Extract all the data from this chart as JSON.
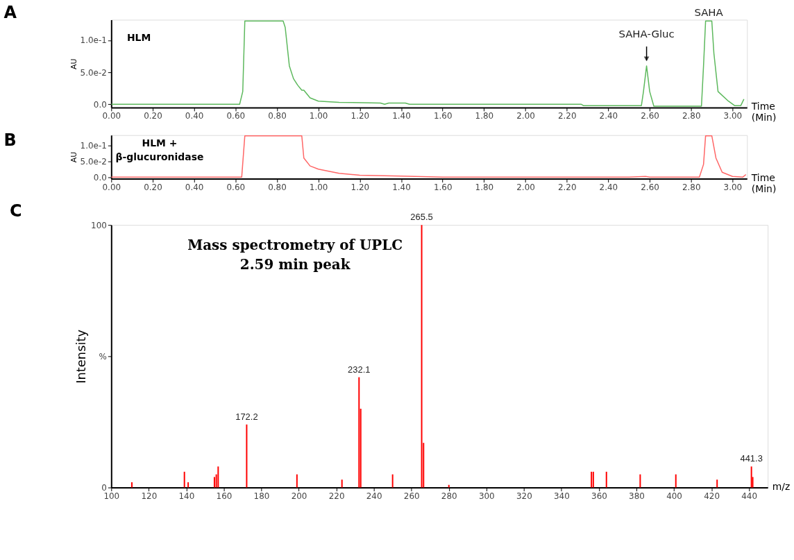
{
  "chart_data": [
    {
      "type": "line",
      "title": "A",
      "ylabel": "AU",
      "xlabel": "Time\n(Min)",
      "color": "#5cb85c",
      "x": [
        0,
        0.62,
        0.635,
        0.645,
        0.83,
        0.84,
        0.86,
        0.88,
        0.9,
        0.92,
        0.93,
        0.96,
        1.0,
        1.1,
        1.3,
        1.32,
        1.34,
        1.42,
        1.44,
        2.27,
        2.28,
        2.56,
        2.57,
        2.585,
        2.6,
        2.62,
        2.85,
        2.86,
        2.87,
        2.9,
        2.91,
        2.93,
        2.98,
        3.01,
        3.04,
        3.055
      ],
      "values": [
        0,
        0,
        0.02,
        0.13,
        0.13,
        0.12,
        0.06,
        0.04,
        0.03,
        0.022,
        0.022,
        0.01,
        0.005,
        0.003,
        0.002,
        0,
        0.002,
        0.002,
        0,
        0,
        -0.002,
        -0.002,
        0.02,
        0.06,
        0.02,
        -0.003,
        -0.003,
        0.06,
        0.13,
        0.13,
        0.08,
        0.02,
        0.005,
        -0.002,
        -0.002,
        0.008
      ],
      "xlim": [
        0,
        3.07
      ],
      "ylim": [
        -0.005,
        0.132
      ],
      "xticks": [
        {
          "value": 0,
          "label": "0.00"
        },
        {
          "value": 0.2,
          "label": "0.20"
        },
        {
          "value": 0.4,
          "label": "0.40"
        },
        {
          "value": 0.6,
          "label": "0.60"
        },
        {
          "value": 0.8,
          "label": "0.80"
        },
        {
          "value": 1,
          "label": "1.00"
        },
        {
          "value": 1.2,
          "label": "1.20"
        },
        {
          "value": 1.4,
          "label": "1.40"
        },
        {
          "value": 1.6,
          "label": "1.60"
        },
        {
          "value": 1.8,
          "label": "1.80"
        },
        {
          "value": 2,
          "label": "2.00"
        },
        {
          "value": 2.2,
          "label": "2.20"
        },
        {
          "value": 2.4,
          "label": "2.40"
        },
        {
          "value": 2.6,
          "label": "2.60"
        },
        {
          "value": 2.8,
          "label": "2.80"
        },
        {
          "value": 3,
          "label": "3.00"
        }
      ],
      "yticks": [
        {
          "value": 0,
          "label": "0.0"
        },
        {
          "value": 0.05,
          "label": "5.0e-2"
        },
        {
          "value": 0.1,
          "label": "1.0e-1"
        }
      ],
      "annotations": [
        "HLM",
        {
          "text": "SAHA-Gluc",
          "x": 2.585,
          "y": 0.06
        },
        {
          "text": "SAHA",
          "x": 2.885,
          "y": 0.13
        }
      ]
    },
    {
      "type": "line",
      "title": "B",
      "ylabel": "AU",
      "xlabel": "Time\n(Min)",
      "color": "#ff6666",
      "x": [
        0,
        0.63,
        0.645,
        0.92,
        0.93,
        0.96,
        1.0,
        1.1,
        1.2,
        1.4,
        1.6,
        2.5,
        2.58,
        2.6,
        2.84,
        2.86,
        2.87,
        2.9,
        2.92,
        2.95,
        3.0,
        3.05,
        3.065
      ],
      "values": [
        0,
        0,
        0.13,
        0.13,
        0.06,
        0.035,
        0.025,
        0.012,
        0.006,
        0.003,
        0,
        0,
        0.002,
        0,
        0,
        0.04,
        0.13,
        0.13,
        0.06,
        0.015,
        0.002,
        0,
        0.008
      ],
      "xlim": [
        0,
        3.07
      ],
      "ylim": [
        -0.005,
        0.132
      ],
      "xticks": [
        {
          "value": 0,
          "label": "0.00"
        },
        {
          "value": 0.2,
          "label": "0.20"
        },
        {
          "value": 0.4,
          "label": "0.40"
        },
        {
          "value": 0.6,
          "label": "0.60"
        },
        {
          "value": 0.8,
          "label": "0.80"
        },
        {
          "value": 1,
          "label": "1.00"
        },
        {
          "value": 1.2,
          "label": "1.20"
        },
        {
          "value": 1.4,
          "label": "1.40"
        },
        {
          "value": 1.6,
          "label": "1.60"
        },
        {
          "value": 1.8,
          "label": "1.80"
        },
        {
          "value": 2,
          "label": "2.00"
        },
        {
          "value": 2.2,
          "label": "2.20"
        },
        {
          "value": 2.4,
          "label": "2.40"
        },
        {
          "value": 2.6,
          "label": "2.60"
        },
        {
          "value": 2.8,
          "label": "2.80"
        },
        {
          "value": 3,
          "label": "3.00"
        }
      ],
      "yticks": [
        {
          "value": 0,
          "label": "0.0"
        },
        {
          "value": 0.05,
          "label": "5.0e-2"
        },
        {
          "value": 0.1,
          "label": "1.0e-1"
        }
      ],
      "annotations": [
        "HLM +\nβ-glucuronidase"
      ]
    },
    {
      "type": "bar",
      "title": "C",
      "ylabel": "Intensity",
      "xlabel": "m/z",
      "color": "#ff0000",
      "x": [
        111,
        139,
        141,
        155,
        156,
        157,
        172.2,
        199,
        223,
        232.1,
        233,
        250,
        265.5,
        266.5,
        280,
        356,
        357,
        364,
        382,
        401,
        423,
        441.3,
        442
      ],
      "values": [
        2,
        6,
        2,
        4,
        5,
        8,
        24,
        5,
        3,
        42,
        30,
        5,
        100,
        17,
        1,
        6,
        6,
        6,
        5,
        5,
        3,
        8,
        4
      ],
      "xlim": [
        100,
        450
      ],
      "ylim": [
        0,
        100
      ],
      "xticks": [
        100,
        120,
        140,
        160,
        180,
        200,
        220,
        240,
        260,
        280,
        300,
        320,
        340,
        360,
        380,
        400,
        420,
        440
      ],
      "yticks": [
        0,
        {
          "value": 50,
          "label": "%"
        },
        100
      ],
      "annotations": [
        "Mass spectrometry of UPLC\n2.59 min peak",
        {
          "text": "172.2",
          "x": 172.2,
          "y": 24
        },
        {
          "text": "232.1",
          "x": 232.1,
          "y": 42
        },
        {
          "text": "265.5",
          "x": 265.5,
          "y": 100
        },
        {
          "text": "441.3",
          "x": 441.3,
          "y": 8
        }
      ]
    }
  ]
}
